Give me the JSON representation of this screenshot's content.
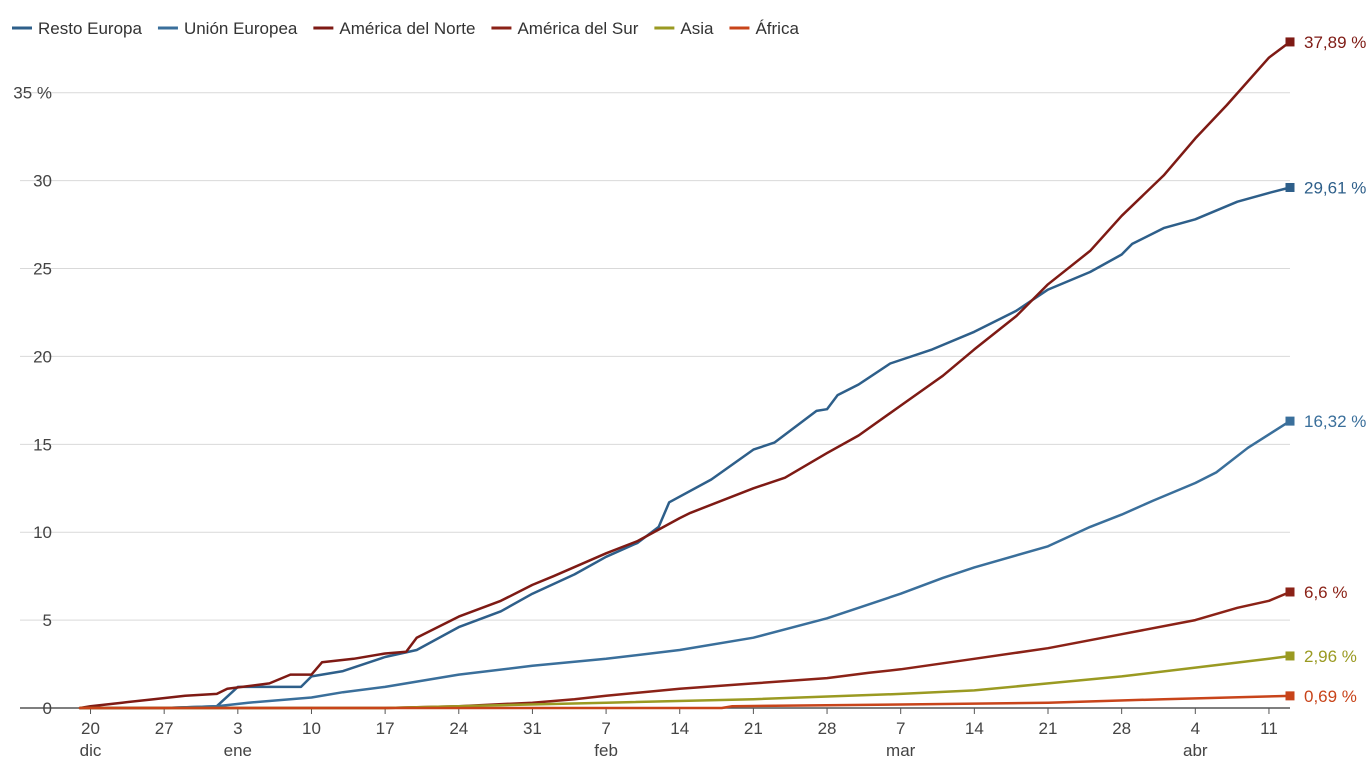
{
  "chart_data": {
    "type": "line",
    "legend_position": "top-left",
    "grid": true,
    "x_range": [
      "2020-12-19",
      "2021-04-13"
    ],
    "ylim": [
      0,
      38
    ],
    "y_ticks": [
      {
        "value": 0,
        "label": "0"
      },
      {
        "value": 5,
        "label": "5"
      },
      {
        "value": 10,
        "label": "10"
      },
      {
        "value": 15,
        "label": "15"
      },
      {
        "value": 20,
        "label": "20"
      },
      {
        "value": 25,
        "label": "25"
      },
      {
        "value": 30,
        "label": "30"
      },
      {
        "value": 35,
        "label": "35 %"
      }
    ],
    "x_ticks": [
      {
        "date": "2020-12-20",
        "label": "20",
        "month": "dic"
      },
      {
        "date": "2020-12-27",
        "label": "27",
        "month": ""
      },
      {
        "date": "2021-01-03",
        "label": "3",
        "month": "ene"
      },
      {
        "date": "2021-01-10",
        "label": "10",
        "month": ""
      },
      {
        "date": "2021-01-17",
        "label": "17",
        "month": ""
      },
      {
        "date": "2021-01-24",
        "label": "24",
        "month": ""
      },
      {
        "date": "2021-01-31",
        "label": "31",
        "month": ""
      },
      {
        "date": "2021-02-07",
        "label": "7",
        "month": "feb"
      },
      {
        "date": "2021-02-14",
        "label": "14",
        "month": ""
      },
      {
        "date": "2021-02-21",
        "label": "21",
        "month": ""
      },
      {
        "date": "2021-02-28",
        "label": "28",
        "month": ""
      },
      {
        "date": "2021-03-07",
        "label": "7",
        "month": "mar"
      },
      {
        "date": "2021-03-14",
        "label": "14",
        "month": ""
      },
      {
        "date": "2021-03-21",
        "label": "21",
        "month": ""
      },
      {
        "date": "2021-03-28",
        "label": "28",
        "month": ""
      },
      {
        "date": "2021-04-04",
        "label": "4",
        "month": "abr"
      },
      {
        "date": "2021-04-11",
        "label": "11",
        "month": ""
      }
    ],
    "series": [
      {
        "name": "Resto Europa",
        "color": "#2e5f8a",
        "end_label": "29,61 %",
        "points": [
          [
            "2020-12-19",
            0
          ],
          [
            "2020-12-27",
            0
          ],
          [
            "2021-01-01",
            0.1
          ],
          [
            "2021-01-03",
            1.2
          ],
          [
            "2021-01-09",
            1.2
          ],
          [
            "2021-01-10",
            1.8
          ],
          [
            "2021-01-13",
            2.1
          ],
          [
            "2021-01-17",
            2.9
          ],
          [
            "2021-01-20",
            3.3
          ],
          [
            "2021-01-24",
            4.6
          ],
          [
            "2021-01-28",
            5.5
          ],
          [
            "2021-01-31",
            6.5
          ],
          [
            "2021-02-04",
            7.6
          ],
          [
            "2021-02-07",
            8.6
          ],
          [
            "2021-02-10",
            9.4
          ],
          [
            "2021-02-12",
            10.3
          ],
          [
            "2021-02-13",
            11.7
          ],
          [
            "2021-02-17",
            13.0
          ],
          [
            "2021-02-21",
            14.7
          ],
          [
            "2021-02-23",
            15.1
          ],
          [
            "2021-02-27",
            16.9
          ],
          [
            "2021-02-28",
            17.0
          ],
          [
            "2021-03-01",
            17.8
          ],
          [
            "2021-03-03",
            18.4
          ],
          [
            "2021-03-06",
            19.6
          ],
          [
            "2021-03-10",
            20.4
          ],
          [
            "2021-03-14",
            21.4
          ],
          [
            "2021-03-18",
            22.6
          ],
          [
            "2021-03-21",
            23.8
          ],
          [
            "2021-03-25",
            24.8
          ],
          [
            "2021-03-28",
            25.8
          ],
          [
            "2021-03-29",
            26.4
          ],
          [
            "2021-04-01",
            27.3
          ],
          [
            "2021-04-04",
            27.8
          ],
          [
            "2021-04-08",
            28.8
          ],
          [
            "2021-04-11",
            29.3
          ],
          [
            "2021-04-13",
            29.61
          ]
        ]
      },
      {
        "name": "Unión Europea",
        "color": "#3a6f9b",
        "end_label": "16,32 %",
        "points": [
          [
            "2020-12-19",
            0
          ],
          [
            "2020-12-27",
            0
          ],
          [
            "2021-01-01",
            0.1
          ],
          [
            "2021-01-04",
            0.3
          ],
          [
            "2021-01-10",
            0.6
          ],
          [
            "2021-01-13",
            0.9
          ],
          [
            "2021-01-17",
            1.2
          ],
          [
            "2021-01-24",
            1.9
          ],
          [
            "2021-01-31",
            2.4
          ],
          [
            "2021-02-07",
            2.8
          ],
          [
            "2021-02-14",
            3.3
          ],
          [
            "2021-02-21",
            4.0
          ],
          [
            "2021-02-28",
            5.1
          ],
          [
            "2021-03-03",
            5.7
          ],
          [
            "2021-03-07",
            6.5
          ],
          [
            "2021-03-11",
            7.4
          ],
          [
            "2021-03-14",
            8.0
          ],
          [
            "2021-03-21",
            9.2
          ],
          [
            "2021-03-25",
            10.3
          ],
          [
            "2021-03-28",
            11.0
          ],
          [
            "2021-03-31",
            11.8
          ],
          [
            "2021-04-04",
            12.8
          ],
          [
            "2021-04-06",
            13.4
          ],
          [
            "2021-04-09",
            14.8
          ],
          [
            "2021-04-13",
            16.32
          ]
        ]
      },
      {
        "name": "América del Norte",
        "color": "#7e1a14",
        "end_label": "37,89 %",
        "points": [
          [
            "2020-12-19",
            0
          ],
          [
            "2020-12-20",
            0.1
          ],
          [
            "2020-12-23",
            0.3
          ],
          [
            "2020-12-26",
            0.5
          ],
          [
            "2020-12-29",
            0.7
          ],
          [
            "2021-01-01",
            0.8
          ],
          [
            "2021-01-02",
            1.1
          ],
          [
            "2021-01-06",
            1.4
          ],
          [
            "2021-01-08",
            1.9
          ],
          [
            "2021-01-10",
            1.9
          ],
          [
            "2021-01-11",
            2.6
          ],
          [
            "2021-01-14",
            2.8
          ],
          [
            "2021-01-17",
            3.1
          ],
          [
            "2021-01-19",
            3.2
          ],
          [
            "2021-01-20",
            4.0
          ],
          [
            "2021-01-24",
            5.2
          ],
          [
            "2021-01-28",
            6.1
          ],
          [
            "2021-01-31",
            7.0
          ],
          [
            "2021-02-02",
            7.5
          ],
          [
            "2021-02-07",
            8.8
          ],
          [
            "2021-02-10",
            9.5
          ],
          [
            "2021-02-14",
            10.8
          ],
          [
            "2021-02-15",
            11.1
          ],
          [
            "2021-02-21",
            12.5
          ],
          [
            "2021-02-24",
            13.1
          ],
          [
            "2021-02-28",
            14.5
          ],
          [
            "2021-03-03",
            15.5
          ],
          [
            "2021-03-07",
            17.2
          ],
          [
            "2021-03-11",
            18.9
          ],
          [
            "2021-03-14",
            20.4
          ],
          [
            "2021-03-18",
            22.3
          ],
          [
            "2021-03-21",
            24.1
          ],
          [
            "2021-03-25",
            26.0
          ],
          [
            "2021-03-28",
            28.0
          ],
          [
            "2021-04-01",
            30.3
          ],
          [
            "2021-04-04",
            32.4
          ],
          [
            "2021-04-07",
            34.3
          ],
          [
            "2021-04-11",
            37.0
          ],
          [
            "2021-04-13",
            37.89
          ]
        ]
      },
      {
        "name": "América del Sur",
        "color": "#8b2217",
        "end_label": "6,6 %",
        "points": [
          [
            "2020-12-19",
            0
          ],
          [
            "2021-01-17",
            0
          ],
          [
            "2021-01-24",
            0.1
          ],
          [
            "2021-01-31",
            0.3
          ],
          [
            "2021-02-04",
            0.5
          ],
          [
            "2021-02-07",
            0.7
          ],
          [
            "2021-02-14",
            1.1
          ],
          [
            "2021-02-21",
            1.4
          ],
          [
            "2021-02-28",
            1.7
          ],
          [
            "2021-03-04",
            2.0
          ],
          [
            "2021-03-07",
            2.2
          ],
          [
            "2021-03-14",
            2.8
          ],
          [
            "2021-03-21",
            3.4
          ],
          [
            "2021-03-28",
            4.2
          ],
          [
            "2021-04-04",
            5.0
          ],
          [
            "2021-04-08",
            5.7
          ],
          [
            "2021-04-11",
            6.1
          ],
          [
            "2021-04-13",
            6.6
          ]
        ]
      },
      {
        "name": "Asia",
        "color": "#9a9a22",
        "end_label": "2,96 %",
        "points": [
          [
            "2020-12-19",
            0
          ],
          [
            "2021-01-17",
            0
          ],
          [
            "2021-01-24",
            0.1
          ],
          [
            "2021-02-07",
            0.3
          ],
          [
            "2021-02-21",
            0.5
          ],
          [
            "2021-03-07",
            0.8
          ],
          [
            "2021-03-14",
            1.0
          ],
          [
            "2021-03-21",
            1.4
          ],
          [
            "2021-03-28",
            1.8
          ],
          [
            "2021-04-04",
            2.3
          ],
          [
            "2021-04-11",
            2.8
          ],
          [
            "2021-04-13",
            2.96
          ]
        ]
      },
      {
        "name": "África",
        "color": "#c8441a",
        "end_label": "0,69 %",
        "points": [
          [
            "2020-12-19",
            0
          ],
          [
            "2021-02-18",
            0
          ],
          [
            "2021-02-19",
            0.1
          ],
          [
            "2021-03-07",
            0.2
          ],
          [
            "2021-03-21",
            0.3
          ],
          [
            "2021-04-01",
            0.5
          ],
          [
            "2021-04-13",
            0.69
          ]
        ]
      }
    ]
  }
}
